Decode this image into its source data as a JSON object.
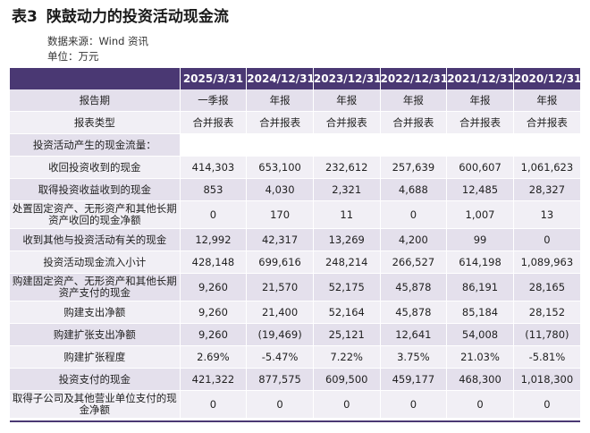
{
  "title": {
    "number": "表3",
    "text": "陕鼓动力的投资活动现金流"
  },
  "source": "数据来源：Wind 资讯",
  "unit": "单位：万元",
  "columns": [
    "",
    "2025/3/31",
    "2024/12/31",
    "2023/12/31",
    "2022/12/31",
    "2021/12/31",
    "2020/12/31"
  ],
  "rows": [
    [
      "报告期",
      "一季报",
      "年报",
      "年报",
      "年报",
      "年报",
      "年报"
    ],
    [
      "报表类型",
      "合并报表",
      "合并报表",
      "合并报表",
      "合并报表",
      "合并报表",
      "合并报表"
    ],
    [
      "投资活动产生的现金流量：",
      "",
      "",
      "",
      "",
      "",
      ""
    ],
    [
      "收回投资收到的现金",
      "414,303",
      "653,100",
      "232,612",
      "257,639",
      "600,607",
      "1,061,623"
    ],
    [
      "取得投资收益收到的现金",
      "853",
      "4,030",
      "2,321",
      "4,688",
      "12,485",
      "28,327"
    ],
    [
      "处置固定资产、无形资产和其他长期资产收回的现金净额",
      "0",
      "170",
      "11",
      "0",
      "1,007",
      "13"
    ],
    [
      "收到其他与投资活动有关的现金",
      "12,992",
      "42,317",
      "13,269",
      "4,200",
      "99",
      "0"
    ],
    [
      "投资活动现金流入小计",
      "428,148",
      "699,616",
      "248,214",
      "266,527",
      "614,198",
      "1,089,963"
    ],
    [
      "购建固定资产、无形资产和其他长期资产支付的现金",
      "9,260",
      "21,570",
      "52,175",
      "45,878",
      "86,191",
      "28,165"
    ],
    [
      "购建支出净额",
      "9,260",
      "21,400",
      "52,164",
      "45,878",
      "85,184",
      "28,152"
    ],
    [
      "购建扩张支出净额",
      "9,260",
      "(19,469)",
      "25,121",
      "12,641",
      "54,008",
      "(11,780)"
    ],
    [
      "购建扩张程度",
      "2.69%",
      "-5.47%",
      "7.22%",
      "3.75%",
      "21.03%",
      "-5.81%"
    ],
    [
      "投资支付的现金",
      "421,322",
      "877,575",
      "609,500",
      "459,177",
      "468,300",
      "1,018,300"
    ],
    [
      "取得子公司及其他营业单位支付的现金净额",
      "0",
      "0",
      "0",
      "0",
      "0",
      "0"
    ]
  ],
  "colors": {
    "header_bg": "#4a3873",
    "row_odd": "#e4e0ec",
    "row_even": "#f1eff5"
  }
}
